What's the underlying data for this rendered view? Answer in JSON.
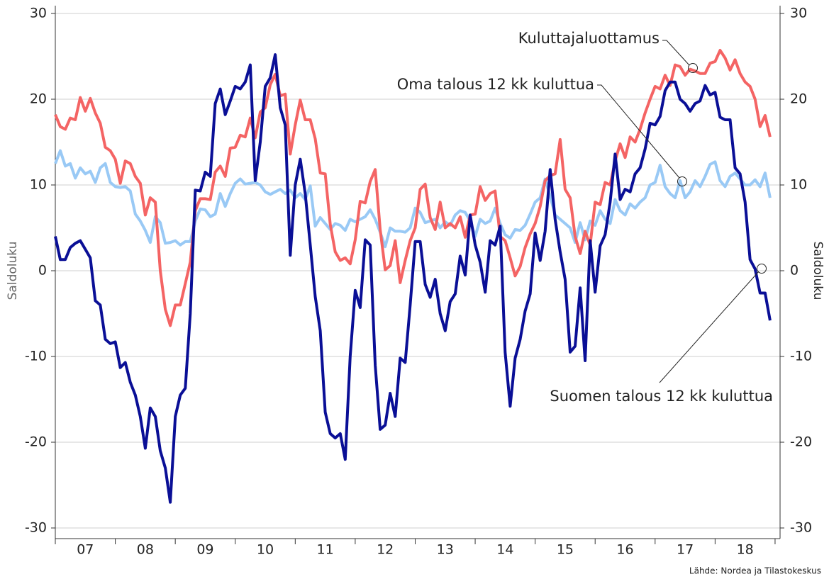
{
  "chart_data": {
    "type": "line",
    "y_label": "Saldoluku",
    "y2_label": "Saldoluku",
    "source": "Lähde: Nordea ja Tilastokeskus",
    "x": [
      0,
      1,
      2,
      3,
      4,
      5,
      6,
      7,
      8,
      9,
      10,
      11,
      12,
      13,
      14,
      15,
      16,
      17,
      18,
      19,
      20,
      21,
      22,
      23,
      24,
      25,
      26,
      27,
      28,
      29,
      30,
      31,
      32,
      33,
      34,
      35,
      36,
      37,
      38,
      39,
      40,
      41,
      42,
      43,
      44,
      45,
      46,
      47,
      48,
      49,
      50,
      51,
      52,
      53,
      54,
      55,
      56,
      57,
      58,
      59,
      60,
      61,
      62,
      63,
      64,
      65,
      66,
      67,
      68,
      69,
      70,
      71,
      72,
      73,
      74,
      75,
      76,
      77,
      78,
      79,
      80,
      81,
      82,
      83,
      84,
      85,
      86,
      87,
      88,
      89,
      90,
      91,
      92,
      93,
      94,
      95,
      96,
      97,
      98,
      99,
      100,
      101,
      102,
      103,
      104,
      105,
      106,
      107,
      108,
      109,
      110,
      111,
      112,
      113,
      114,
      115,
      116,
      117,
      118,
      119,
      120,
      121,
      122,
      123,
      124,
      125,
      126,
      127,
      128,
      129,
      130,
      131,
      132,
      133,
      134,
      135,
      136,
      137,
      138,
      139,
      140,
      141,
      142,
      143
    ],
    "xlim": [
      0,
      145
    ],
    "xticks": [
      {
        "value": 6,
        "label": "07"
      },
      {
        "value": 18,
        "label": "08"
      },
      {
        "value": 30,
        "label": "09"
      },
      {
        "value": 42,
        "label": "10"
      },
      {
        "value": 54,
        "label": "11"
      },
      {
        "value": 66,
        "label": "12"
      },
      {
        "value": 78,
        "label": "13"
      },
      {
        "value": 90,
        "label": "14"
      },
      {
        "value": 102,
        "label": "15"
      },
      {
        "value": 114,
        "label": "16"
      },
      {
        "value": 126,
        "label": "17"
      },
      {
        "value": 138,
        "label": "18"
      }
    ],
    "xminor": [
      0,
      12,
      24,
      36,
      48,
      60,
      72,
      84,
      96,
      108,
      120,
      132,
      144
    ],
    "ylim": [
      -30,
      30
    ],
    "yticks": [
      -30,
      -20,
      -10,
      0,
      10,
      20,
      30
    ],
    "y2lim": [
      -30,
      30
    ],
    "y2ticks": [
      -30,
      -20,
      -10,
      0,
      10,
      20,
      30
    ],
    "grid": true,
    "series": [
      {
        "name": "Oma talous 12 kk kuluttua",
        "color": "#99c9f5",
        "values": [
          12.5,
          14,
          12.2,
          12.5,
          10.8,
          12,
          11.3,
          11.6,
          10.3,
          12,
          12.5,
          10.3,
          9.8,
          9.7,
          9.8,
          9.3,
          6.6,
          5.8,
          4.7,
          3.3,
          6.3,
          5.6,
          3.2,
          3.3,
          3.5,
          3,
          3.4,
          3.4,
          5.8,
          7.2,
          7.1,
          6.3,
          6.6,
          9,
          7.5,
          9,
          10.2,
          10.7,
          10.1,
          10.2,
          10.3,
          10,
          9.2,
          8.9,
          9.2,
          9.5,
          9,
          9.4,
          8.5,
          9,
          8.3,
          9.9,
          5.2,
          6.2,
          5.5,
          4.8,
          5.5,
          5.3,
          4.7,
          6,
          5.7,
          6,
          6.3,
          7.1,
          6,
          4.5,
          2.8,
          5,
          4.6,
          4.6,
          4.5,
          5,
          7.3,
          6.8,
          5.6,
          5.8,
          6,
          5,
          5.7,
          5.3,
          6.5,
          7,
          6.8,
          5.8,
          4,
          6,
          5.5,
          5.8,
          7.3,
          5.5,
          4.2,
          3.8,
          4.8,
          4.7,
          5.3,
          6.6,
          8,
          8.5,
          10.7,
          8.7,
          6.5,
          6,
          5.5,
          5,
          3.3,
          5.6,
          3.6,
          5.8,
          5.3,
          7,
          6,
          5.5,
          8.3,
          7,
          6.5,
          7.8,
          7.3,
          8,
          8.5,
          10,
          10.3,
          12.3,
          9.8,
          9,
          8.5,
          10.5,
          8.5,
          9.2,
          10.5,
          9.8,
          11,
          12.4,
          12.7,
          10.5,
          9.8,
          11,
          11.4,
          10.7,
          10,
          10,
          10.6,
          9.8,
          11.4,
          8.5
        ]
      },
      {
        "name": "Kuluttajaluottamus",
        "color": "#f46464",
        "values": [
          18.2,
          16.8,
          16.5,
          17.8,
          17.6,
          20.2,
          18.6,
          20.1,
          18.4,
          17.2,
          14.4,
          14,
          13,
          10.2,
          12.8,
          12.5,
          11,
          10.2,
          6.5,
          8.5,
          8,
          0,
          -4.5,
          -6.4,
          -4,
          -4,
          -1.5,
          1,
          7,
          8.4,
          8.4,
          8.3,
          11.5,
          12.2,
          11,
          14.3,
          14.4,
          15.8,
          15.6,
          17.8,
          15.5,
          18.5,
          19,
          21.7,
          22.9,
          20.4,
          20.6,
          13.6,
          17,
          19.9,
          17.6,
          17.6,
          15.4,
          11.4,
          11.3,
          5.4,
          2.2,
          1.2,
          1.5,
          0.8,
          3.6,
          8.1,
          7.9,
          10.4,
          11.8,
          4.8,
          0.1,
          0.6,
          3.5,
          -1.4,
          1.2,
          3.5,
          5,
          9.5,
          10.1,
          6.2,
          4.8,
          8,
          5,
          5.5,
          5,
          6.3,
          3.9,
          6.5,
          6.6,
          9.8,
          8.2,
          9,
          9.3,
          4,
          3.5,
          1.5,
          -0.6,
          0.5,
          2.7,
          4.3,
          5.5,
          7.5,
          10.5,
          11.1,
          11.3,
          15.3,
          9.5,
          8.5,
          4,
          2,
          4.6,
          3,
          8,
          7.7,
          10.3,
          10,
          12.8,
          14.8,
          13.2,
          15.6,
          15,
          16.5,
          18.4,
          20,
          21.5,
          21.2,
          22.8,
          21.6,
          24,
          23.8,
          22.8,
          23.5,
          23.3,
          23,
          23,
          24.2,
          24.4,
          25.7,
          24.8,
          23.4,
          24.6,
          23,
          22,
          21.5,
          20,
          16.8,
          18.1,
          15.6
        ]
      },
      {
        "name": "Suomen talous 12 kk kuluttua",
        "color": "#0a0f96",
        "values": [
          4,
          1.3,
          1.3,
          2.7,
          3.2,
          3.5,
          2.5,
          1.5,
          -3.5,
          -4,
          -8,
          -8.5,
          -8.3,
          -11.3,
          -10.7,
          -13,
          -14.5,
          -17,
          -20.7,
          -16,
          -17,
          -21,
          -23,
          -27,
          -17,
          -14.5,
          -13.7,
          -5,
          9.4,
          9.3,
          11.5,
          11,
          19.5,
          21.2,
          18.2,
          19.8,
          21.5,
          21.2,
          22,
          24,
          10.5,
          15,
          21.5,
          22.5,
          25.2,
          19,
          17,
          1.8,
          10,
          13,
          9,
          3,
          -3,
          -7,
          -16.5,
          -19,
          -19.5,
          -19,
          -22,
          -10,
          -2.3,
          -4.3,
          3.6,
          3,
          -11,
          -18.5,
          -18,
          -14.3,
          -17,
          -10.2,
          -10.7,
          -4,
          3.4,
          3.4,
          -1.6,
          -3.1,
          -1,
          -5,
          -7,
          -3.6,
          -2.7,
          1.7,
          -0.5,
          6.5,
          3,
          1,
          -2.5,
          3.5,
          3,
          5.2,
          -9.5,
          -15.8,
          -10.2,
          -8,
          -4.7,
          -2.7,
          4.4,
          1.2,
          4.6,
          11.8,
          6,
          2.2,
          -1,
          -9.5,
          -8.8,
          -2,
          -10.5,
          3.5,
          -2.5,
          2.9,
          4.2,
          8,
          13.6,
          8.3,
          9.5,
          9.2,
          11.3,
          12,
          14.2,
          17.2,
          17,
          18,
          21,
          22,
          22,
          20,
          19.5,
          18.6,
          19.5,
          19.8,
          21.6,
          20.5,
          20.8,
          17.9,
          17.6,
          17.6,
          12,
          11.3,
          8,
          1.3,
          0.2,
          -2.6,
          -2.6,
          -5.8
        ]
      }
    ]
  }
}
